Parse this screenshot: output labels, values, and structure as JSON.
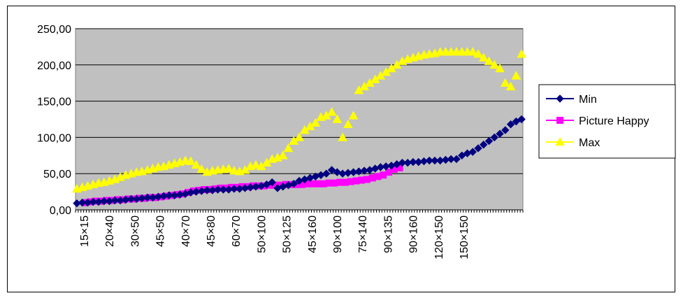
{
  "chart_data": {
    "type": "scatter",
    "title": "",
    "xlabel": "",
    "ylabel": "",
    "ylim": [
      0,
      250
    ],
    "y_ticks": [
      "0,00",
      "50,00",
      "100,00",
      "150,00",
      "200,00",
      "250,00"
    ],
    "x_tick_labels": [
      "15×15",
      "20×40",
      "30×50",
      "45×50",
      "40×70",
      "45×80",
      "60×70",
      "50×100",
      "50×125",
      "45×160",
      "90×100",
      "75×140",
      "90×135",
      "90×160",
      "120×150",
      "150×150"
    ],
    "x_count": 165,
    "grid": true,
    "legend_position": "right",
    "series": [
      {
        "name": "Min",
        "color": "#000080",
        "marker": "diamond",
        "x": [
          1,
          3,
          5,
          7,
          9,
          11,
          13,
          15,
          17,
          19,
          21,
          23,
          25,
          27,
          29,
          31,
          33,
          35,
          37,
          39,
          41,
          43,
          45,
          47,
          49,
          51,
          53,
          55,
          57,
          59,
          61,
          63,
          65,
          67,
          69,
          71,
          73,
          75,
          77,
          79,
          81,
          83,
          85,
          87,
          89,
          91,
          93,
          95,
          97,
          99,
          101,
          103,
          105,
          107,
          109,
          111,
          113,
          115,
          117,
          119,
          121,
          123,
          125,
          127,
          129,
          131,
          133,
          135,
          137,
          139,
          141,
          143,
          145,
          147,
          149,
          151,
          153,
          155,
          157,
          159,
          161,
          163,
          165
        ],
        "y": [
          9,
          10,
          10,
          11,
          11,
          12,
          12,
          13,
          13,
          14,
          15,
          15,
          16,
          17,
          17,
          18,
          19,
          20,
          20,
          21,
          22,
          24,
          25,
          26,
          27,
          27,
          28,
          28,
          28,
          29,
          29,
          30,
          31,
          32,
          33,
          35,
          38,
          30,
          32,
          34,
          36,
          40,
          42,
          44,
          46,
          48,
          50,
          55,
          52,
          50,
          51,
          52,
          53,
          54,
          55,
          57,
          59,
          60,
          61,
          63,
          65,
          65,
          66,
          66,
          67,
          68,
          68,
          68,
          69,
          70,
          70,
          75,
          78,
          80,
          85,
          90,
          95,
          100,
          105,
          110,
          118,
          122,
          125
        ]
      },
      {
        "name": "Picture Happy",
        "color": "#ff00ff",
        "marker": "square",
        "x": [
          4,
          6,
          8,
          10,
          12,
          14,
          16,
          18,
          20,
          22,
          24,
          26,
          28,
          30,
          32,
          34,
          36,
          38,
          40,
          42,
          44,
          46,
          48,
          50,
          52,
          54,
          56,
          58,
          60,
          62,
          64,
          66,
          68,
          70,
          72,
          74,
          76,
          78,
          80,
          82,
          84,
          86,
          88,
          90,
          92,
          94,
          96,
          98,
          100,
          102,
          104,
          106,
          108,
          110,
          112,
          114,
          116,
          118,
          120
        ],
        "y": [
          10,
          11,
          12,
          12,
          13,
          13,
          14,
          14,
          15,
          15,
          16,
          16,
          17,
          17,
          18,
          19,
          20,
          21,
          22,
          24,
          26,
          27,
          28,
          28,
          29,
          30,
          30,
          31,
          31,
          32,
          32,
          33,
          33,
          33,
          34,
          34,
          34,
          35,
          35,
          35,
          35,
          36,
          36,
          36,
          36,
          37,
          37,
          38,
          38,
          39,
          40,
          41,
          42,
          44,
          46,
          48,
          52,
          56,
          58
        ]
      },
      {
        "name": "Max",
        "color": "#ffff00",
        "marker": "triangle",
        "x": [
          1,
          3,
          5,
          7,
          9,
          11,
          13,
          15,
          17,
          19,
          21,
          23,
          25,
          27,
          29,
          31,
          33,
          35,
          37,
          39,
          41,
          43,
          45,
          47,
          49,
          51,
          53,
          55,
          57,
          59,
          61,
          63,
          65,
          67,
          69,
          71,
          73,
          75,
          77,
          79,
          81,
          83,
          85,
          87,
          89,
          91,
          93,
          95,
          97,
          99,
          101,
          103,
          105,
          107,
          109,
          111,
          113,
          115,
          117,
          119,
          121,
          123,
          125,
          127,
          129,
          131,
          133,
          135,
          137,
          139,
          141,
          143,
          145,
          147,
          149,
          151,
          153,
          155,
          157,
          159,
          161,
          163,
          165
        ],
        "y": [
          29,
          31,
          33,
          35,
          37,
          38,
          40,
          42,
          45,
          48,
          50,
          52,
          53,
          55,
          57,
          59,
          60,
          62,
          64,
          66,
          68,
          67,
          62,
          56,
          52,
          54,
          55,
          56,
          57,
          54,
          53,
          55,
          60,
          62,
          60,
          65,
          70,
          72,
          75,
          85,
          95,
          100,
          110,
          115,
          120,
          128,
          130,
          135,
          125,
          100,
          118,
          130,
          165,
          170,
          175,
          180,
          185,
          190,
          195,
          200,
          205,
          208,
          210,
          212,
          214,
          215,
          216,
          218,
          218,
          218,
          218,
          218,
          218,
          218,
          215,
          210,
          205,
          200,
          195,
          175,
          170,
          185,
          215
        ]
      }
    ]
  }
}
